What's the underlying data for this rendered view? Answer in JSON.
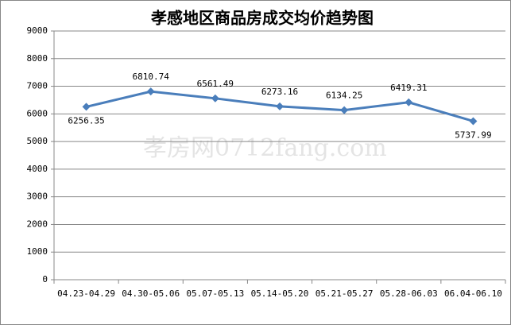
{
  "chart_data": {
    "type": "line",
    "title": "孝感地区商品房成交均价趋势图",
    "watermark": "孝房网0712fang.com",
    "categories": [
      "04.23-04.29",
      "04.30-05.06",
      "05.07-05.13",
      "05.14-05.20",
      "05.21-05.27",
      "05.28-06.03",
      "06.04-06.10"
    ],
    "values": [
      6256.35,
      6810.74,
      6561.49,
      6273.16,
      6134.25,
      6419.31,
      5737.99
    ],
    "color": "#4a7ebb",
    "ylim": [
      0,
      9000
    ],
    "yticks": [
      0,
      1000,
      2000,
      3000,
      4000,
      5000,
      6000,
      7000,
      8000,
      9000
    ],
    "grid": true
  }
}
